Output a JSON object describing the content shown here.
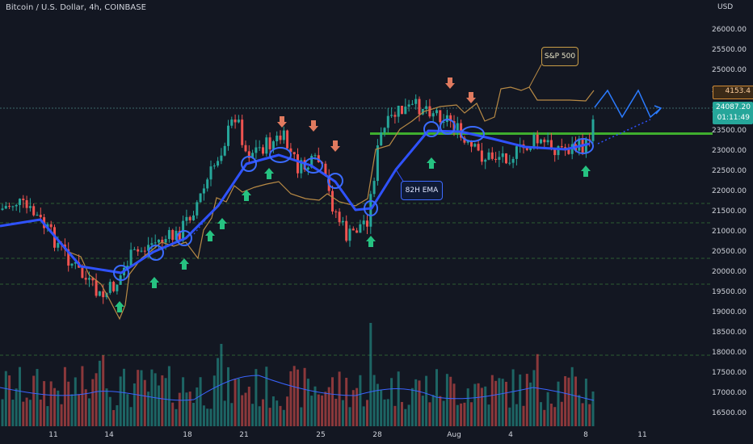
{
  "header": {
    "title": "Bitcoin / U.S. Dollar, 4h, COINBASE",
    "currency": "USD"
  },
  "price_axis": {
    "ticks": [
      "26000.00",
      "25500.00",
      "25000.00",
      "24500.00",
      "24000.00",
      "23500.00",
      "23000.00",
      "22500.00",
      "22000.00",
      "21500.00",
      "21000.00",
      "20500.00",
      "20000.00",
      "19500.00",
      "19000.00",
      "18500.00",
      "18000.00",
      "17500.00",
      "17000.00",
      "16500.00"
    ],
    "spx_tag": "4153.4",
    "btc_price": "24087.20",
    "btc_countdown": "01:11:49"
  },
  "time_axis": {
    "ticks": [
      "11",
      "14",
      "18",
      "21",
      "25",
      "28",
      "Aug",
      "4",
      "8",
      "11"
    ]
  },
  "annotations": {
    "spx_label": "S&P 500",
    "ema_label": "82H EMA"
  },
  "colors": {
    "background": "#131722",
    "bull": "#26a69a",
    "bear": "#ef5350",
    "ema": "#2f52ff",
    "spx": "#b88a45",
    "support": "#3fae2e",
    "arrow_up": "#26c281",
    "arrow_down": "#e07a5f"
  },
  "chart_data": {
    "type": "line",
    "series": [
      {
        "name": "82H EMA",
        "values": [
          21300,
          21430,
          21300,
          21200,
          21000,
          20800,
          20400,
          20100,
          20200,
          20450,
          20600,
          20950,
          21300,
          21800,
          22250,
          22600,
          22800,
          22950,
          22900,
          22750,
          22800,
          22600,
          22350,
          21900,
          21600,
          22000,
          22600,
          23200,
          23450,
          23500,
          23380,
          23250,
          23200,
          23100,
          23050,
          23080,
          23100,
          23150
        ]
      },
      {
        "name": "S&P 500",
        "values": [
          20200,
          20000,
          19800,
          19500,
          19200,
          19700,
          20800,
          21200,
          21300,
          21500,
          21200,
          21600,
          22000,
          22100,
          22200,
          21950,
          22000,
          22200,
          21900,
          21800,
          21500,
          22300,
          23300,
          23500,
          23800,
          24000,
          24200,
          24300,
          24350,
          24350,
          24400
        ]
      }
    ],
    "support_level": 23450,
    "ylim": [
      16300,
      26300
    ]
  }
}
